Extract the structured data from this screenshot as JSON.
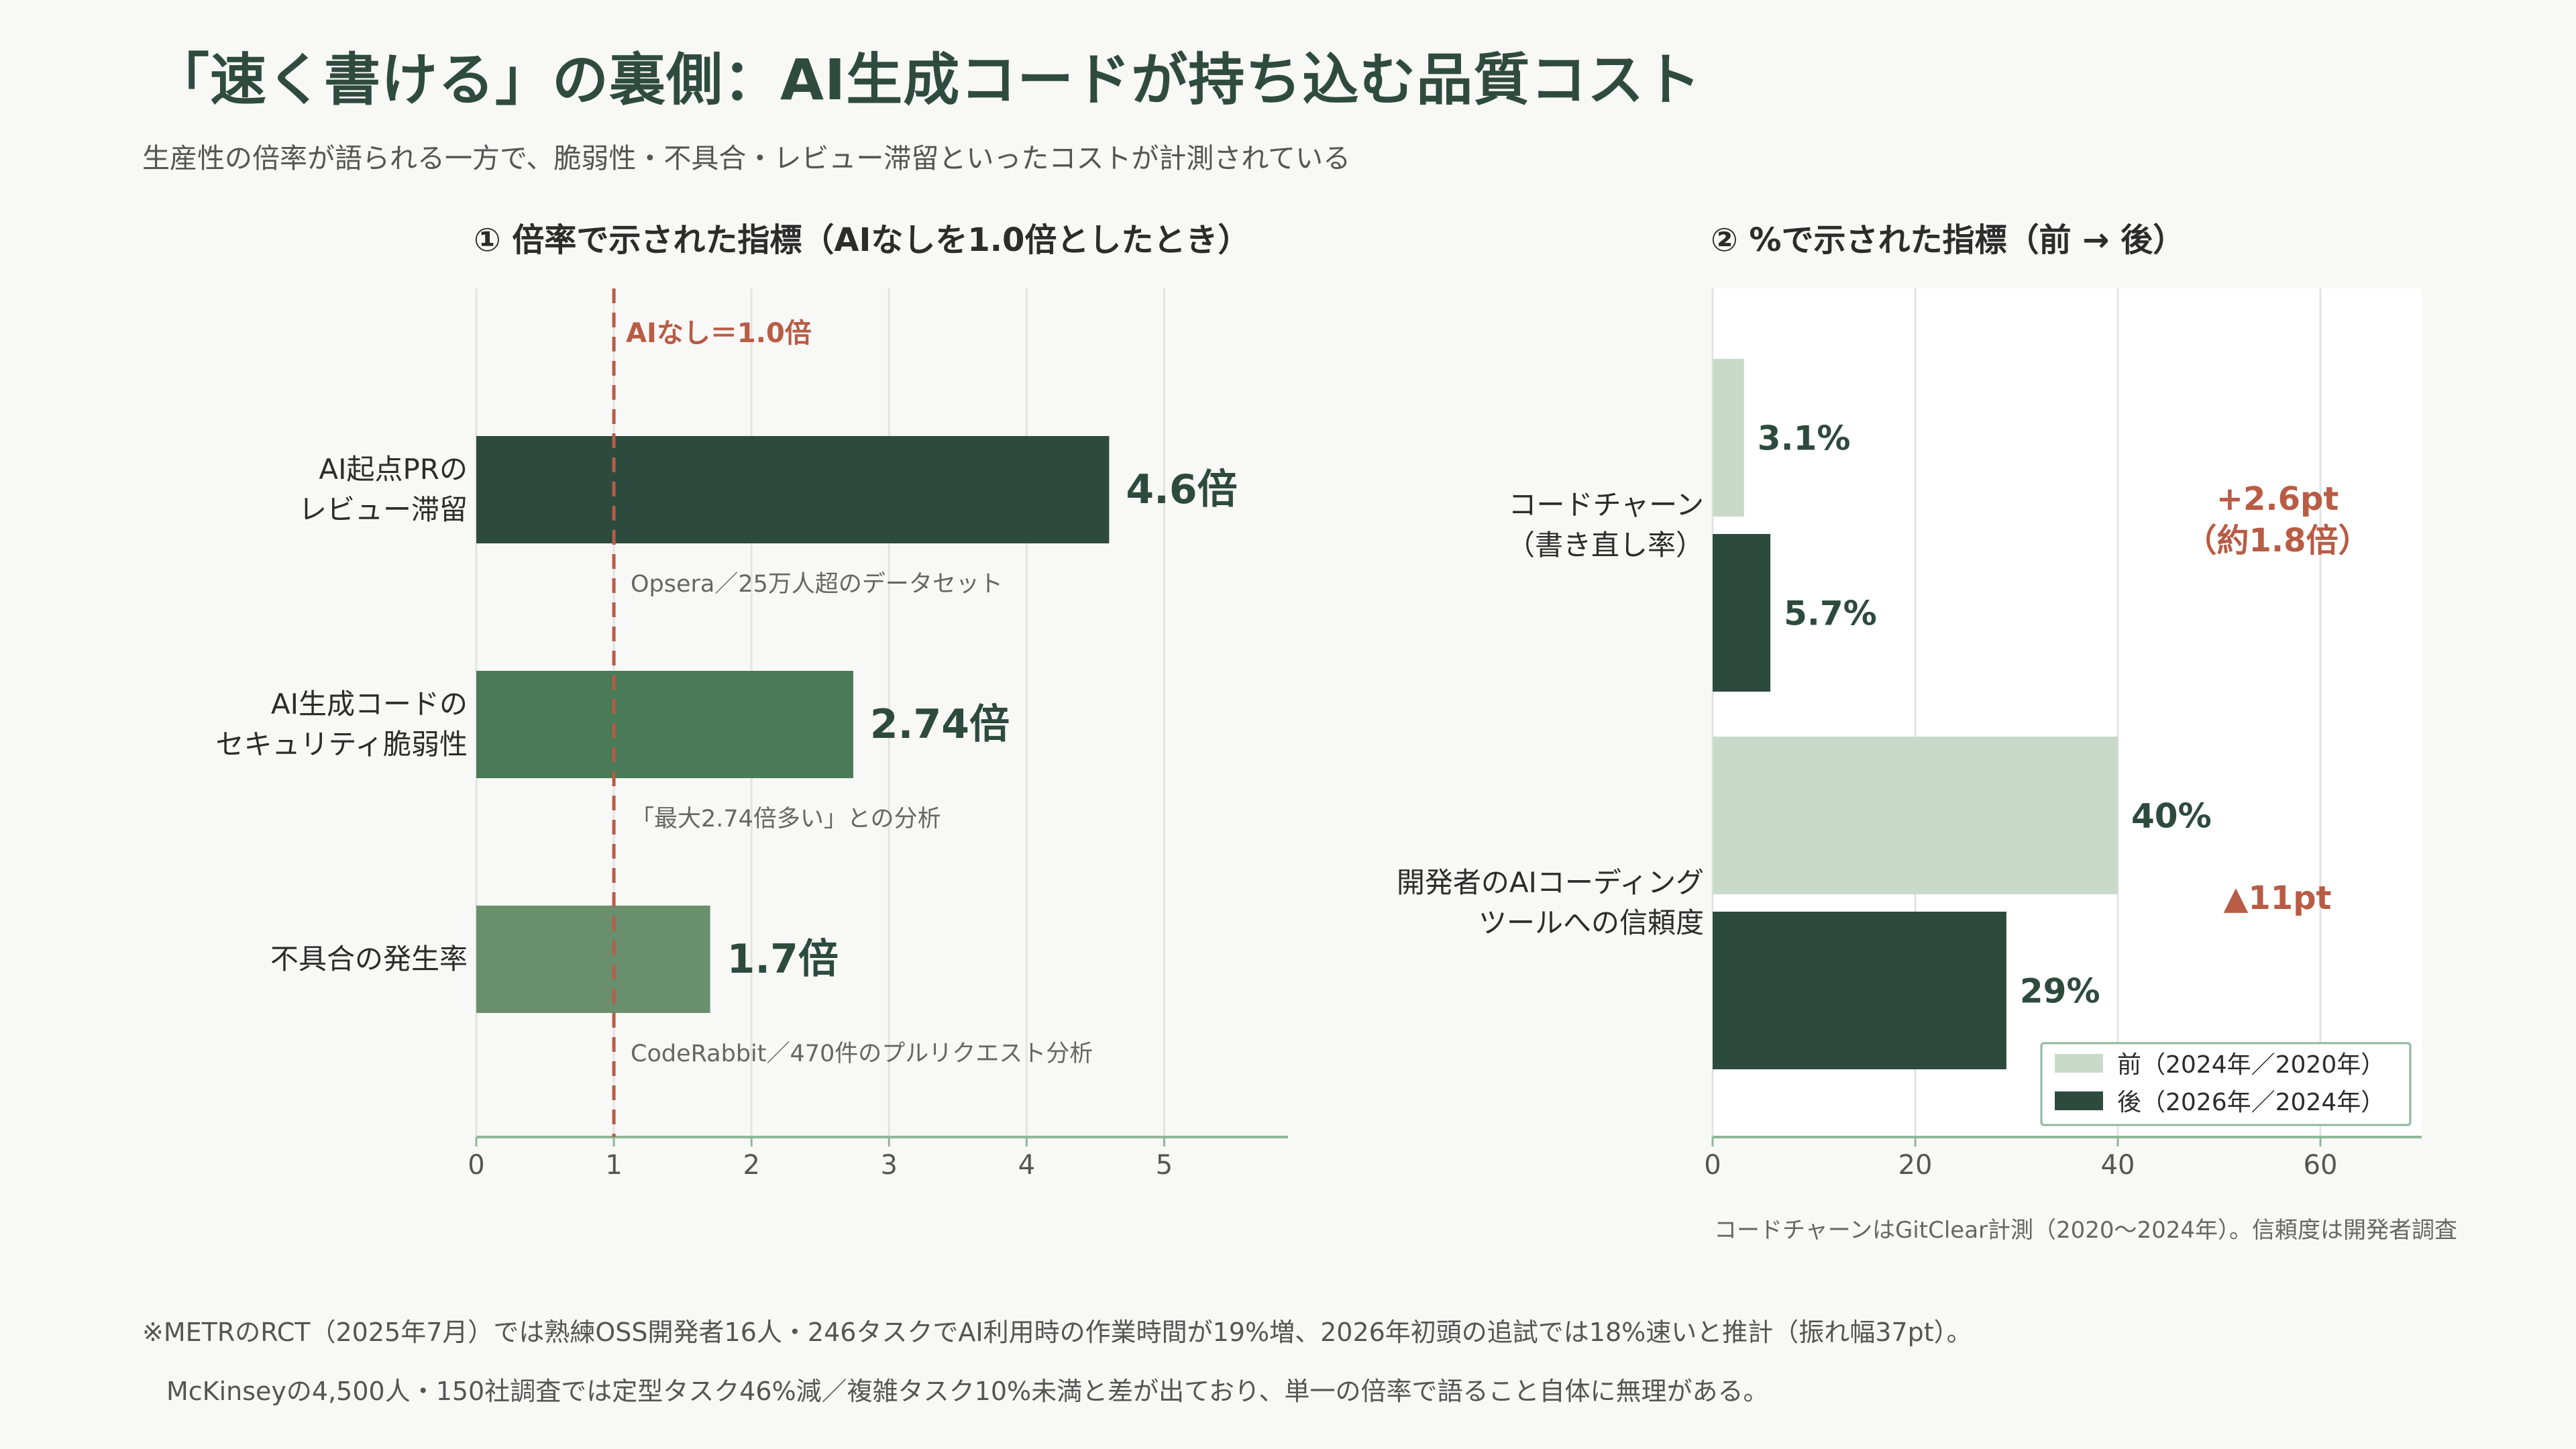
{
  "page": {
    "title": "「速く書ける」の裏側：AI生成コードが持ち込む品質コスト",
    "subtitle": "生産性の倍率が語られる一方で、脆弱性・不具合・レビュー滞留といったコストが計測されている",
    "source_note": "コードチャーンはGitClear計測（2020〜2024年）。信頼度は開発者調査",
    "footnote_line1": "※METRのRCT（2025年7月）では熟練OSS開発者16人・246タスクでAI利用時の作業時間が19%増、2026年初頭の追試では18%速いと推計（振れ幅37pt）。",
    "footnote_line2": "McKinseyの4,500人・150社調査では定型タスク46%減／複雑タスク10%未満と差が出ており、単一の倍率で語ること自体に無理がある。"
  },
  "chart_data": [
    {
      "type": "bar",
      "orientation": "horizontal",
      "title": "① 倍率で示された指標（AIなしを1.0倍としたとき）",
      "categories": [
        [
          "AI起点PRの",
          "レビュー滞留"
        ],
        [
          "AI生成コードの",
          "セキュリティ脆弱性"
        ],
        [
          "不具合の発生率"
        ]
      ],
      "values": [
        4.6,
        2.74,
        1.7
      ],
      "value_labels": [
        "4.6倍",
        "2.74倍",
        "1.7倍"
      ],
      "sources": [
        "Opsera／25万人超のデータセット",
        "「最大2.74倍多い」との分析",
        "CodeRabbit／470件のプルリクエスト分析"
      ],
      "colors": [
        "#2d4a3e",
        "#4a7a57",
        "#6a8f6d"
      ],
      "xlim": [
        0,
        5.9
      ],
      "xticks": [
        "0",
        "1",
        "2",
        "3",
        "4",
        "5"
      ],
      "reference_line": {
        "value": 1.0,
        "label": "AIなし＝1.0倍",
        "color": "#b85c45"
      },
      "grid": true
    },
    {
      "type": "bar",
      "orientation": "horizontal",
      "title": "② %で示された指標（前 → 後）",
      "categories": [
        [
          "コードチャーン",
          "（書き直し率）"
        ],
        [
          "開発者のAIコーディング",
          "ツールへの信頼度"
        ]
      ],
      "series": [
        {
          "name": "前（2024年／2020年）",
          "values": [
            3.1,
            40
          ],
          "labels": [
            "3.1%",
            "40%"
          ],
          "color": "#c9dacb"
        },
        {
          "name": "後（2026年／2024年）",
          "values": [
            5.7,
            29
          ],
          "labels": [
            "5.7%",
            "29%"
          ],
          "color": "#2d4a3e"
        }
      ],
      "annotations": [
        {
          "lines": [
            "+2.6pt",
            "（約1.8倍）"
          ],
          "color": "#b85c45"
        },
        {
          "lines": [
            "▲11pt"
          ],
          "color": "#b85c45"
        }
      ],
      "xlim": [
        0,
        70
      ],
      "xticks": [
        "0",
        "20",
        "40",
        "60"
      ],
      "legend_position": "bottom-right",
      "grid": true
    }
  ]
}
